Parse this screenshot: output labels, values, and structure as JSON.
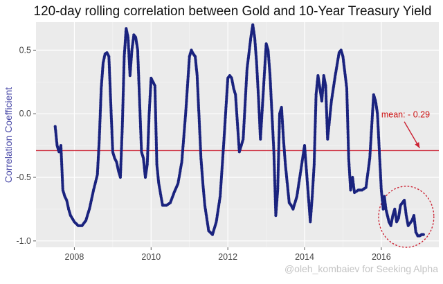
{
  "chart_data": {
    "type": "scatter",
    "title": "120-day rolling correlation between Gold and 10-Year Treasury Yield",
    "xlabel": "",
    "ylabel": "Correlation Coefficient",
    "xlim": [
      2007.0,
      2017.5
    ],
    "ylim": [
      -1.05,
      0.72
    ],
    "x_ticks": [
      2008,
      2010,
      2012,
      2014,
      2016
    ],
    "x_tick_labels": [
      "2008",
      "2010",
      "2012",
      "2014",
      "2016"
    ],
    "y_ticks": [
      -1.0,
      -0.5,
      0.0,
      0.5
    ],
    "y_tick_labels": [
      "-1.0",
      "-0.5",
      "0.0",
      "0.5"
    ],
    "grid": true,
    "panel_background": "#ebebeb",
    "point_color": "#1a237e",
    "series": [
      {
        "x": [
          2007.5,
          2007.55,
          2007.6,
          2007.65,
          2007.7,
          2007.75,
          2007.8,
          2007.85,
          2007.9,
          2008.0,
          2008.1,
          2008.2,
          2008.3,
          2008.4,
          2008.5,
          2008.6,
          2008.65,
          2008.7,
          2008.75,
          2008.8,
          2008.85,
          2008.9,
          2009.0,
          2009.05,
          2009.1,
          2009.15,
          2009.2,
          2009.25,
          2009.3,
          2009.35,
          2009.4,
          2009.45,
          2009.5,
          2009.55,
          2009.6,
          2009.65,
          2009.7,
          2009.75,
          2009.8,
          2009.85,
          2009.9,
          2009.95,
          2010.0,
          2010.1,
          2010.15,
          2010.2,
          2010.3,
          2010.4,
          2010.5,
          2010.6,
          2010.7,
          2010.8,
          2010.9,
          2011.0,
          2011.05,
          2011.1,
          2011.15,
          2011.2,
          2011.3,
          2011.35,
          2011.4,
          2011.5,
          2011.6,
          2011.7,
          2011.8,
          2011.9,
          2012.0,
          2012.05,
          2012.1,
          2012.15,
          2012.2,
          2012.3,
          2012.4,
          2012.5,
          2012.6,
          2012.65,
          2012.7,
          2012.75,
          2012.8,
          2012.85,
          2012.9,
          2012.95,
          2013.0,
          2013.05,
          2013.1,
          2013.2,
          2013.25,
          2013.3,
          2013.35,
          2013.4,
          2013.45,
          2013.5,
          2013.55,
          2013.6,
          2013.65,
          2013.7,
          2013.8,
          2013.9,
          2014.0,
          2014.05,
          2014.1,
          2014.15,
          2014.2,
          2014.25,
          2014.3,
          2014.35,
          2014.4,
          2014.45,
          2014.5,
          2014.55,
          2014.6,
          2014.7,
          2014.8,
          2014.9,
          2014.95,
          2015.0,
          2015.1,
          2015.15,
          2015.2,
          2015.25,
          2015.3,
          2015.4,
          2015.5,
          2015.6,
          2015.7,
          2015.75,
          2015.8,
          2015.85,
          2015.9,
          2015.95,
          2016.0,
          2016.05,
          2016.08,
          2016.12,
          2016.16,
          2016.2,
          2016.25,
          2016.3,
          2016.35,
          2016.4,
          2016.45,
          2016.5,
          2016.6,
          2016.65,
          2016.7,
          2016.8,
          2016.85,
          2016.9,
          2016.95,
          2017.0,
          2017.05,
          2017.1
        ],
        "y": [
          -0.1,
          -0.25,
          -0.3,
          -0.25,
          -0.6,
          -0.65,
          -0.68,
          -0.75,
          -0.8,
          -0.85,
          -0.88,
          -0.88,
          -0.84,
          -0.74,
          -0.6,
          -0.48,
          -0.2,
          0.2,
          0.4,
          0.47,
          0.48,
          0.45,
          -0.3,
          -0.35,
          -0.38,
          -0.45,
          -0.5,
          -0.1,
          0.45,
          0.67,
          0.6,
          0.3,
          0.5,
          0.62,
          0.6,
          0.5,
          0.1,
          -0.3,
          -0.35,
          -0.5,
          -0.4,
          0.0,
          0.28,
          0.22,
          -0.4,
          -0.55,
          -0.72,
          -0.72,
          -0.7,
          -0.62,
          -0.55,
          -0.38,
          0.0,
          0.45,
          0.5,
          0.47,
          0.45,
          0.3,
          -0.35,
          -0.55,
          -0.72,
          -0.92,
          -0.95,
          -0.85,
          -0.65,
          -0.2,
          0.28,
          0.3,
          0.28,
          0.2,
          0.15,
          -0.3,
          -0.2,
          0.35,
          0.6,
          0.7,
          0.6,
          0.4,
          0.12,
          -0.2,
          0.05,
          0.3,
          0.55,
          0.5,
          0.3,
          -0.3,
          -0.8,
          -0.6,
          0.0,
          0.05,
          -0.2,
          -0.4,
          -0.55,
          -0.7,
          -0.72,
          -0.75,
          -0.65,
          -0.45,
          -0.25,
          -0.45,
          -0.65,
          -0.85,
          -0.65,
          -0.4,
          0.15,
          0.3,
          0.2,
          0.1,
          0.3,
          0.22,
          -0.2,
          0.1,
          0.3,
          0.48,
          0.5,
          0.45,
          0.2,
          -0.35,
          -0.6,
          -0.5,
          -0.62,
          -0.6,
          -0.6,
          -0.58,
          -0.35,
          -0.1,
          0.15,
          0.1,
          0.0,
          -0.3,
          -0.6,
          -0.75,
          -0.65,
          -0.75,
          -0.8,
          -0.85,
          -0.88,
          -0.8,
          -0.75,
          -0.85,
          -0.82,
          -0.72,
          -0.68,
          -0.8,
          -0.88,
          -0.84,
          -0.8,
          -0.93,
          -0.96,
          -0.96,
          -0.95,
          -0.95
        ]
      }
    ],
    "reference_line": {
      "y": -0.29,
      "color": "#cc2233",
      "label": "mean: - 0.29",
      "arrow_to": [
        2017.0,
        -0.27
      ],
      "label_anchor": [
        2016.0,
        -0.03
      ]
    },
    "highlight_circle": {
      "center": [
        2016.65,
        -0.81
      ],
      "radius_x_years": 0.72,
      "radius_y_corr": 0.24,
      "style": "dotted",
      "color": "#cc2233"
    },
    "credit": "@oleh_kombaiev for Seeking Alpha"
  }
}
